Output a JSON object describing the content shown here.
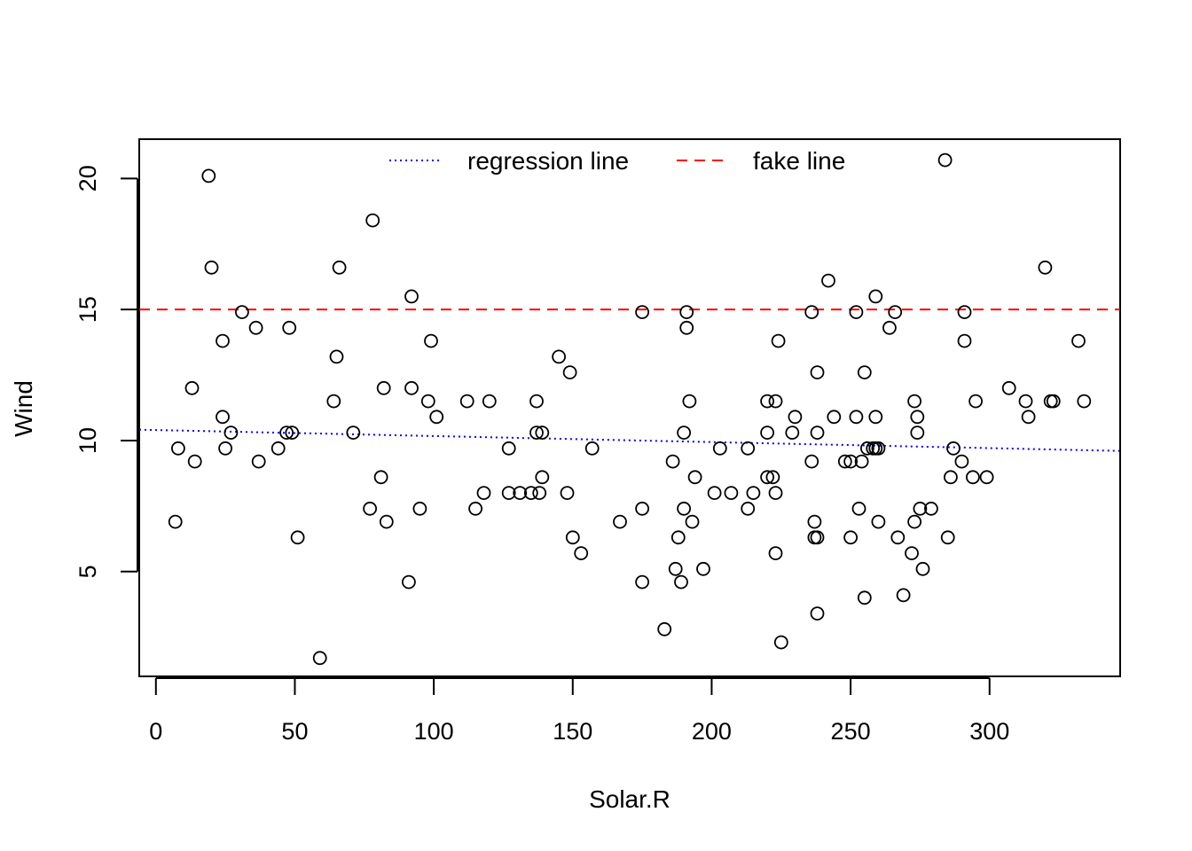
{
  "chart_data": {
    "type": "scatter",
    "xlabel": "Solar.R",
    "ylabel": "Wind",
    "xlim": [
      -6,
      347
    ],
    "ylim": [
      1.0,
      21.5
    ],
    "xticks": [
      0,
      50,
      100,
      150,
      200,
      250,
      300
    ],
    "yticks": [
      5,
      10,
      15,
      20
    ],
    "xtick_labels": [
      "0",
      "50",
      "100",
      "150",
      "200",
      "250",
      "300"
    ],
    "ytick_labels": [
      "5",
      "10",
      "15",
      "20"
    ],
    "grid": false,
    "legend": {
      "placement": "top",
      "entries": [
        {
          "label": "regression line",
          "color": "#0000ff",
          "style": "dotted"
        },
        {
          "label": "fake line",
          "color": "#ff0000",
          "style": "dashed"
        }
      ]
    },
    "lines": [
      {
        "name": "regression line",
        "color": "#0000ff",
        "style": "dotted",
        "intercept": 10.4,
        "slope": -0.0023
      },
      {
        "name": "fake line",
        "color": "#ff0000",
        "style": "dashed",
        "intercept": 15,
        "slope": 0
      }
    ],
    "points": [
      [
        7,
        6.9
      ],
      [
        8,
        9.7
      ],
      [
        13,
        12.0
      ],
      [
        14,
        9.2
      ],
      [
        19,
        20.1
      ],
      [
        20,
        16.6
      ],
      [
        24,
        13.8
      ],
      [
        24,
        10.9
      ],
      [
        25,
        9.7
      ],
      [
        27,
        10.3
      ],
      [
        31,
        14.9
      ],
      [
        36,
        14.3
      ],
      [
        37,
        9.2
      ],
      [
        44,
        9.7
      ],
      [
        47,
        10.3
      ],
      [
        48,
        14.3
      ],
      [
        49,
        10.3
      ],
      [
        51,
        6.3
      ],
      [
        59,
        1.7
      ],
      [
        64,
        11.5
      ],
      [
        65,
        13.2
      ],
      [
        66,
        16.6
      ],
      [
        71,
        10.3
      ],
      [
        77,
        7.4
      ],
      [
        78,
        18.4
      ],
      [
        81,
        8.6
      ],
      [
        82,
        12.0
      ],
      [
        83,
        6.9
      ],
      [
        91,
        4.6
      ],
      [
        92,
        15.5
      ],
      [
        92,
        12.0
      ],
      [
        95,
        7.4
      ],
      [
        98,
        11.5
      ],
      [
        99,
        13.8
      ],
      [
        101,
        10.9
      ],
      [
        112,
        11.5
      ],
      [
        115,
        7.4
      ],
      [
        118,
        8.0
      ],
      [
        120,
        11.5
      ],
      [
        127,
        9.7
      ],
      [
        127,
        8.0
      ],
      [
        131,
        8.0
      ],
      [
        135,
        8.0
      ],
      [
        137,
        11.5
      ],
      [
        137,
        10.3
      ],
      [
        138,
        8.0
      ],
      [
        139,
        10.3
      ],
      [
        139,
        8.6
      ],
      [
        145,
        13.2
      ],
      [
        148,
        8.0
      ],
      [
        149,
        12.6
      ],
      [
        150,
        6.3
      ],
      [
        153,
        5.7
      ],
      [
        157,
        9.7
      ],
      [
        167,
        6.9
      ],
      [
        175,
        14.9
      ],
      [
        175,
        7.4
      ],
      [
        175,
        4.6
      ],
      [
        183,
        2.8
      ],
      [
        186,
        9.2
      ],
      [
        187,
        5.1
      ],
      [
        188,
        6.3
      ],
      [
        189,
        4.6
      ],
      [
        190,
        10.3
      ],
      [
        190,
        7.4
      ],
      [
        191,
        14.9
      ],
      [
        191,
        14.3
      ],
      [
        192,
        11.5
      ],
      [
        193,
        6.9
      ],
      [
        194,
        8.6
      ],
      [
        197,
        5.1
      ],
      [
        201,
        8.0
      ],
      [
        203,
        9.7
      ],
      [
        207,
        8.0
      ],
      [
        213,
        9.7
      ],
      [
        213,
        7.4
      ],
      [
        215,
        8.0
      ],
      [
        220,
        11.5
      ],
      [
        220,
        10.3
      ],
      [
        220,
        8.6
      ],
      [
        222,
        8.6
      ],
      [
        223,
        11.5
      ],
      [
        223,
        8.0
      ],
      [
        223,
        5.7
      ],
      [
        224,
        13.8
      ],
      [
        225,
        2.3
      ],
      [
        229,
        10.3
      ],
      [
        230,
        10.9
      ],
      [
        236,
        14.9
      ],
      [
        236,
        9.2
      ],
      [
        237,
        6.9
      ],
      [
        237,
        6.3
      ],
      [
        238,
        12.6
      ],
      [
        238,
        10.3
      ],
      [
        238,
        6.3
      ],
      [
        238,
        3.4
      ],
      [
        242,
        16.1
      ],
      [
        244,
        10.9
      ],
      [
        248,
        9.2
      ],
      [
        250,
        9.2
      ],
      [
        250,
        6.3
      ],
      [
        252,
        14.9
      ],
      [
        252,
        10.9
      ],
      [
        253,
        7.4
      ],
      [
        254,
        9.2
      ],
      [
        255,
        12.6
      ],
      [
        255,
        4.0
      ],
      [
        256,
        9.7
      ],
      [
        258,
        9.7
      ],
      [
        259,
        15.5
      ],
      [
        259,
        10.9
      ],
      [
        259,
        9.7
      ],
      [
        260,
        9.7
      ],
      [
        260,
        6.9
      ],
      [
        264,
        14.3
      ],
      [
        266,
        14.9
      ],
      [
        267,
        6.3
      ],
      [
        269,
        4.1
      ],
      [
        272,
        5.7
      ],
      [
        273,
        11.5
      ],
      [
        273,
        6.9
      ],
      [
        274,
        10.9
      ],
      [
        274,
        10.3
      ],
      [
        275,
        7.4
      ],
      [
        276,
        5.1
      ],
      [
        279,
        7.4
      ],
      [
        284,
        20.7
      ],
      [
        285,
        6.3
      ],
      [
        286,
        8.6
      ],
      [
        287,
        9.7
      ],
      [
        290,
        9.2
      ],
      [
        291,
        14.9
      ],
      [
        291,
        13.8
      ],
      [
        294,
        8.6
      ],
      [
        295,
        11.5
      ],
      [
        299,
        8.6
      ],
      [
        307,
        12.0
      ],
      [
        313,
        11.5
      ],
      [
        314,
        10.9
      ],
      [
        320,
        16.6
      ],
      [
        322,
        11.5
      ],
      [
        323,
        11.5
      ],
      [
        332,
        13.8
      ],
      [
        334,
        11.5
      ]
    ]
  }
}
